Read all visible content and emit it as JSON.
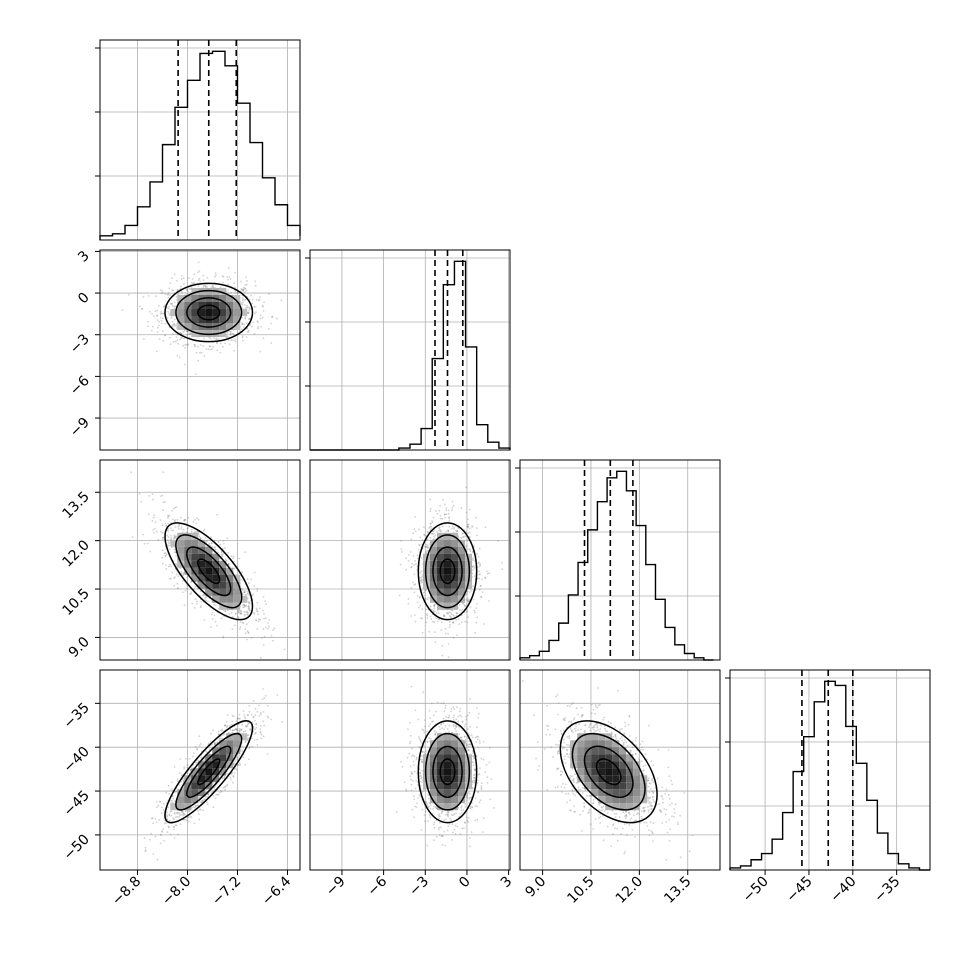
{
  "chart_data": {
    "type": "corner",
    "parameters": [
      {
        "ticks": [
          -8.8,
          -8.0,
          -7.2,
          -6.4
        ],
        "tick_labels": [
          "−8.8",
          "−8.0",
          "−7.2",
          "−6.4"
        ],
        "range": [
          -9.4,
          -6.2
        ]
      },
      {
        "ticks": [
          -9,
          -6,
          -3,
          0,
          3
        ],
        "tick_labels": [
          "−9",
          "−6",
          "−3",
          "0",
          "3"
        ],
        "range": [
          -11.3,
          3.1
        ]
      },
      {
        "ticks": [
          9.0,
          10.5,
          12.0,
          13.5
        ],
        "tick_labels": [
          "9.0",
          "10.5",
          "12.0",
          "13.5"
        ],
        "range": [
          8.3,
          14.5
        ]
      },
      {
        "ticks": [
          -50,
          -45,
          -40,
          -35
        ],
        "tick_labels": [
          "−50",
          "−45",
          "−40",
          "−35"
        ],
        "range": [
          -54.0,
          -31.2
        ]
      }
    ],
    "quantiles": [
      [
        -8.15,
        -7.66,
        -7.22
      ],
      [
        -2.3,
        -1.4,
        -0.3
      ],
      [
        10.3,
        11.1,
        11.8
      ],
      [
        -45.8,
        -42.8,
        -40.0
      ]
    ],
    "histograms": [
      {
        "bins": [
          -9.4,
          -9.2,
          -9.0,
          -8.8,
          -8.6,
          -8.4,
          -8.2,
          -8.0,
          -7.8,
          -7.6,
          -7.4,
          -7.2,
          -7.0,
          -6.8,
          -6.6,
          -6.4,
          -6.2
        ],
        "counts": [
          2,
          3,
          7,
          16,
          28,
          46,
          64,
          77,
          90,
          91,
          84,
          66,
          47,
          30,
          17,
          7,
          2
        ]
      },
      {
        "bins": [
          -11.3,
          -10.5,
          -9.7,
          -8.9,
          -8.1,
          -7.3,
          -6.5,
          -5.7,
          -4.9,
          -4.1,
          -3.3,
          -2.5,
          -1.7,
          -0.9,
          -0.1,
          0.7,
          1.5,
          2.3,
          3.1
        ],
        "counts": [
          0,
          0,
          0,
          0,
          0,
          0,
          0,
          0,
          1,
          3,
          11,
          47,
          85,
          97,
          53,
          13,
          4,
          1
        ]
      },
      {
        "bins": [
          8.3,
          8.6,
          8.9,
          9.2,
          9.5,
          9.8,
          10.1,
          10.4,
          10.7,
          11.0,
          11.3,
          11.6,
          11.9,
          12.2,
          12.5,
          12.8,
          13.1,
          13.4,
          13.7,
          14.0,
          14.3
        ],
        "counts": [
          1,
          2,
          4,
          9,
          17,
          30,
          45,
          60,
          73,
          84,
          87,
          78,
          62,
          44,
          28,
          15,
          7,
          3,
          1,
          0
        ]
      },
      {
        "bins": [
          -54,
          -52.8,
          -51.6,
          -50.4,
          -49.2,
          -48,
          -46.8,
          -45.6,
          -44.4,
          -43.2,
          -42,
          -40.8,
          -39.6,
          -38.4,
          -37.2,
          -36,
          -34.8,
          -33.6,
          -32.4,
          -31.2
        ],
        "counts": [
          1,
          2,
          5,
          8,
          15,
          28,
          48,
          65,
          82,
          92,
          90,
          70,
          52,
          34,
          18,
          8,
          3,
          1,
          0
        ]
      }
    ],
    "pairs": [
      {
        "x": 0,
        "y": 1,
        "mean": [
          -7.66,
          -1.4
        ],
        "sd": [
          0.35,
          1.05
        ],
        "rho": 0.0
      },
      {
        "x": 0,
        "y": 2,
        "mean": [
          -7.66,
          11.05
        ],
        "sd": [
          0.35,
          0.75
        ],
        "rho": -0.72
      },
      {
        "x": 0,
        "y": 3,
        "mean": [
          -7.66,
          -42.8
        ],
        "sd": [
          0.35,
          2.9
        ],
        "rho": 0.86
      },
      {
        "x": 1,
        "y": 2,
        "mean": [
          -1.4,
          11.05
        ],
        "sd": [
          1.05,
          0.75
        ],
        "rho": 0.0
      },
      {
        "x": 1,
        "y": 3,
        "mean": [
          -1.4,
          -42.8
        ],
        "sd": [
          1.05,
          2.9
        ],
        "rho": 0.0
      },
      {
        "x": 2,
        "y": 3,
        "mean": [
          11.05,
          -42.8
        ],
        "sd": [
          0.75,
          2.9
        ],
        "rho": -0.45
      }
    ],
    "grid": true,
    "contour_levels": [
      0.5,
      1.0,
      1.5,
      2.0
    ],
    "colors": {
      "frame": "#000000",
      "grid": "#b0b0b0",
      "points": "#7f7f7f",
      "line": "#000000"
    }
  }
}
